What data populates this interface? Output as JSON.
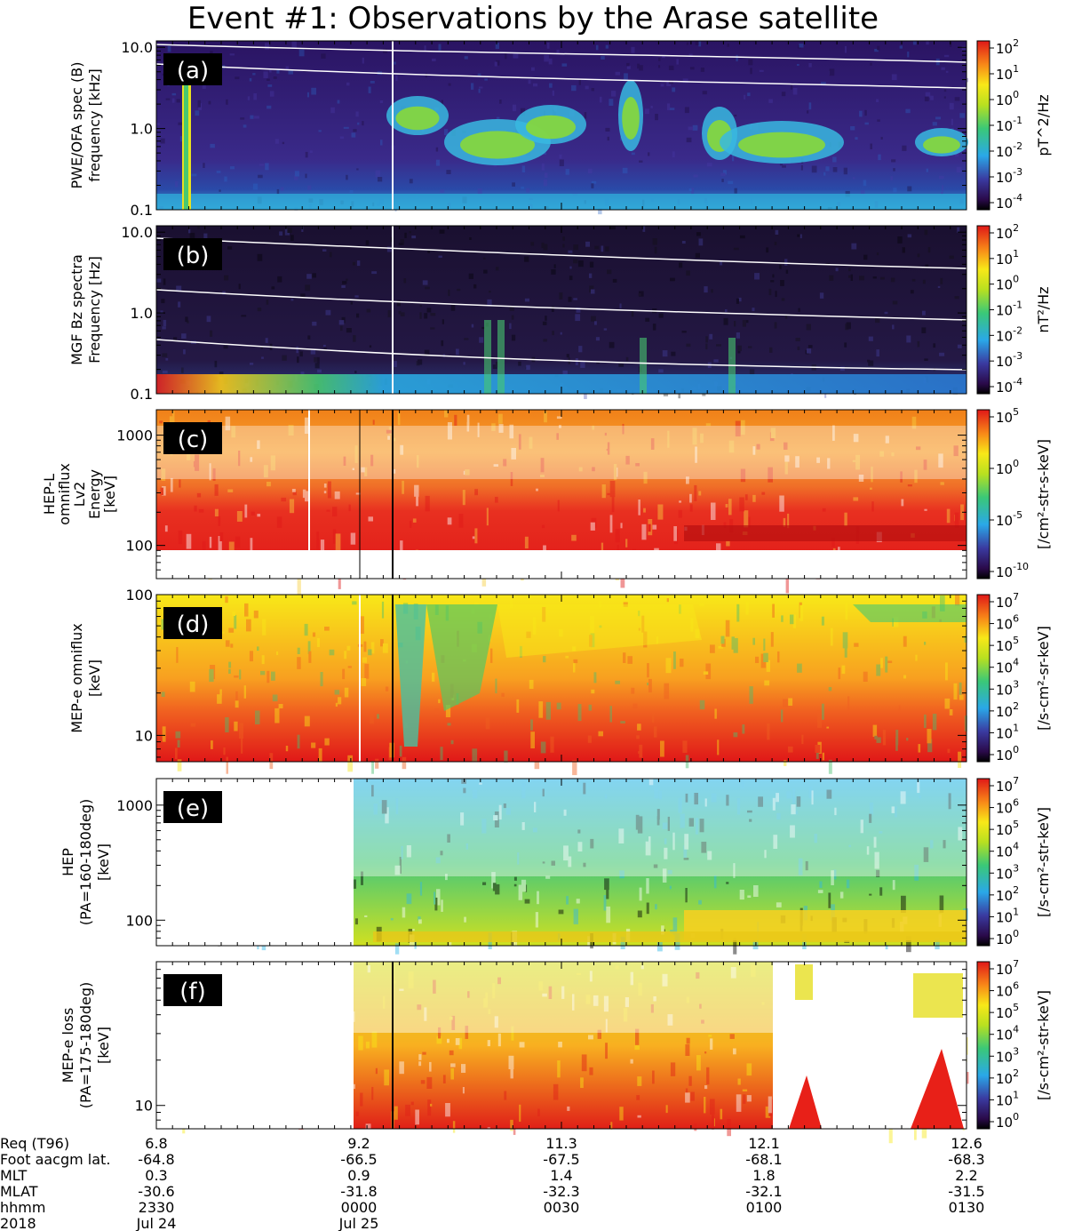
{
  "title": "Event #1: Observations by the Arase satellite",
  "chart_data": [
    {
      "type": "heatmap",
      "panel": "(a)",
      "ylabel": [
        "PWE/OFA spec (B)",
        "frequency [kHz]"
      ],
      "yscale": "log",
      "ylim": [
        0.1,
        12
      ],
      "yticks": [
        0.1,
        1.0,
        10.0
      ],
      "ytick_labels": [
        "0.1",
        "1.0",
        "10.0"
      ],
      "colorbar_label": "pT^2/Hz",
      "colorbar_ticks": [
        [
          "10",
          "2"
        ],
        [
          "10",
          "1"
        ],
        [
          "10",
          "0"
        ],
        [
          "10",
          "-1"
        ],
        [
          "10",
          "-2"
        ],
        [
          "10",
          "-3"
        ],
        [
          "10",
          "-4"
        ]
      ],
      "colorscale": "rainbow"
    },
    {
      "type": "heatmap",
      "panel": "(b)",
      "ylabel": [
        "MGF Bz spectra",
        "Frequency [Hz]"
      ],
      "yscale": "log",
      "ylim": [
        0.1,
        12
      ],
      "yticks": [
        0.1,
        1.0,
        10.0
      ],
      "ytick_labels": [
        "0.1",
        "1.0",
        "10.0"
      ],
      "colorbar_label": "nT²/Hz",
      "colorbar_ticks": [
        [
          "10",
          "2"
        ],
        [
          "10",
          "1"
        ],
        [
          "10",
          "0"
        ],
        [
          "10",
          "-1"
        ],
        [
          "10",
          "-2"
        ],
        [
          "10",
          "-3"
        ],
        [
          "10",
          "-4"
        ]
      ],
      "colorscale": "rainbow"
    },
    {
      "type": "heatmap",
      "panel": "(c)",
      "ylabel": [
        "HEP-L",
        "omniflux",
        "Lv2",
        "Energy",
        "[keV]"
      ],
      "yscale": "log",
      "ylim": [
        50,
        1700
      ],
      "yticks": [
        100,
        1000
      ],
      "ytick_labels": [
        "100",
        "1000"
      ],
      "colorbar_label": "[/cm²-str-s-keV]",
      "colorbar_ticks": [
        [
          "10",
          "5"
        ],
        [
          "10",
          "0"
        ],
        [
          "10",
          "-5"
        ],
        [
          "10",
          "-10"
        ]
      ],
      "colorscale": "rainbow"
    },
    {
      "type": "heatmap",
      "panel": "(d)",
      "ylabel": [
        "MEP-e omniflux",
        "[keV]"
      ],
      "yscale": "log",
      "ylim": [
        6.5,
        100
      ],
      "yticks": [
        10,
        100
      ],
      "ytick_labels": [
        "10",
        "100"
      ],
      "colorbar_label": "[/s-cm²-sr-keV]",
      "colorbar_ticks": [
        [
          "10",
          "7"
        ],
        [
          "10",
          "6"
        ],
        [
          "10",
          "5"
        ],
        [
          "10",
          "4"
        ],
        [
          "10",
          "3"
        ],
        [
          "10",
          "2"
        ],
        [
          "10",
          "1"
        ],
        [
          "10",
          "0"
        ]
      ],
      "colorscale": "rainbow"
    },
    {
      "type": "heatmap",
      "panel": "(e)",
      "ylabel": [
        "HEP",
        "(PA=160-180deg)",
        "[keV]"
      ],
      "yscale": "log",
      "ylim": [
        60,
        1700
      ],
      "yticks": [
        100,
        1000
      ],
      "ytick_labels": [
        "100",
        "1000"
      ],
      "colorbar_label": "[/s-cm²-str-keV]",
      "colorbar_ticks": [
        [
          "10",
          "7"
        ],
        [
          "10",
          "6"
        ],
        [
          "10",
          "5"
        ],
        [
          "10",
          "4"
        ],
        [
          "10",
          "3"
        ],
        [
          "10",
          "2"
        ],
        [
          "10",
          "1"
        ],
        [
          "10",
          "0"
        ]
      ],
      "colorscale": "rainbow"
    },
    {
      "type": "heatmap",
      "panel": "(f)",
      "ylabel": [
        "MEP-e loss",
        "(PA=175-180deg)",
        "[keV]"
      ],
      "yscale": "log",
      "ylim": [
        7,
        90
      ],
      "yticks": [
        10
      ],
      "ytick_labels": [
        "10"
      ],
      "colorbar_label": "[/s-cm²-str-keV]",
      "colorbar_ticks": [
        [
          "10",
          "7"
        ],
        [
          "10",
          "6"
        ],
        [
          "10",
          "5"
        ],
        [
          "10",
          "4"
        ],
        [
          "10",
          "3"
        ],
        [
          "10",
          "2"
        ],
        [
          "10",
          "1"
        ],
        [
          "10",
          "0"
        ]
      ],
      "colorscale": "rainbow"
    }
  ],
  "xaxis": {
    "row_labels": [
      "Req (T96)",
      "Foot aacgm lat.",
      "MLT",
      "MLAT",
      "hhmm",
      "2018"
    ],
    "columns": [
      [
        "6.8",
        "-64.8",
        "0.3",
        "-30.6",
        "2330",
        "Jul 24"
      ],
      [
        "9.2",
        "-66.5",
        "0.9",
        "-31.8",
        "0000",
        "Jul 25"
      ],
      [
        "11.3",
        "-67.5",
        "1.4",
        "-32.3",
        "0030",
        ""
      ],
      [
        "12.1",
        "-68.1",
        "1.8",
        "-32.1",
        "0100",
        ""
      ],
      [
        "12.6",
        "-68.3",
        "2.2",
        "-31.5",
        "0130",
        ""
      ]
    ]
  }
}
